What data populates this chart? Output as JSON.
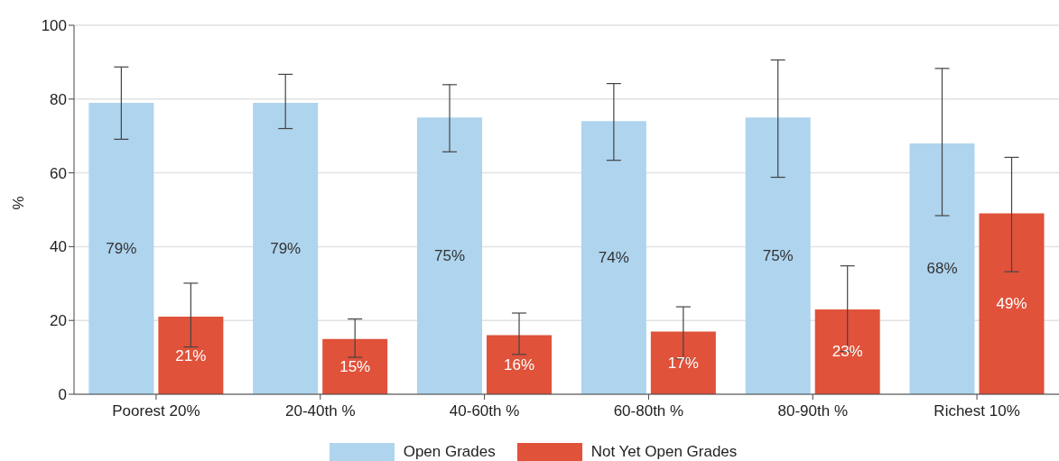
{
  "chart_data": {
    "type": "bar",
    "ylabel": "%",
    "categories": [
      "Poorest 20%",
      "20-40th %",
      "40-60th %",
      "60-80th %",
      "80-90th %",
      "Richest 10%"
    ],
    "series": [
      {
        "name": "Open Grades",
        "color": "#aed4ee",
        "values": [
          79,
          79,
          75,
          74,
          75,
          68
        ],
        "value_labels": [
          "79%",
          "79%",
          "75%",
          "74%",
          "75%",
          "68%"
        ],
        "errors": [
          [
            69.1,
            88.7
          ],
          [
            72.0,
            86.7
          ],
          [
            65.7,
            83.9
          ],
          [
            63.4,
            84.2
          ],
          [
            58.8,
            90.6
          ],
          [
            48.4,
            88.3
          ]
        ]
      },
      {
        "name": "Not Yet Open Grades",
        "color": "#e0523a",
        "values": [
          21,
          15,
          16,
          17,
          23,
          49
        ],
        "value_labels": [
          "21%",
          "15%",
          "16%",
          "17%",
          "23%",
          "49%"
        ],
        "errors": [
          [
            12.8,
            30.1
          ],
          [
            10.0,
            20.4
          ],
          [
            10.8,
            22.0
          ],
          [
            9.6,
            23.7
          ],
          [
            11.6,
            34.8
          ],
          [
            33.2,
            64.2
          ]
        ]
      }
    ],
    "ylim": [
      0,
      100
    ],
    "yticks": [
      0,
      20,
      40,
      60,
      80,
      100
    ],
    "grid": "y",
    "legend": "bottom"
  }
}
